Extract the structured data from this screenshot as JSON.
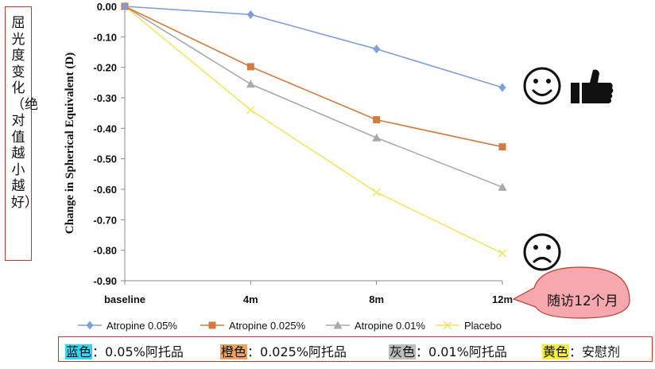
{
  "side_label": "屈光度变化（绝对值越小越好）",
  "callout": "随访12个月",
  "colors": {
    "blue": "#7f9fd6",
    "orange": "#d17b3f",
    "gray": "#a9a9a9",
    "yellow": "#f2e46a",
    "border": "#c0392b",
    "callout_fill": "#f7a8ae"
  },
  "icons": {
    "happy": "smiley-face-icon",
    "like": "thumbs-up-icon",
    "sad": "sad-face-icon"
  },
  "chart_data": {
    "type": "line",
    "categories": [
      "baseline",
      "4m",
      "8m",
      "12m"
    ],
    "ylabel": "Change in Spherical Equivalent (D)",
    "ylim": [
      -0.9,
      0.0
    ],
    "yticks": [
      "0.00",
      "-0.10",
      "-0.20",
      "-0.30",
      "-0.40",
      "-0.50",
      "-0.60",
      "-0.70",
      "-0.80",
      "-0.90"
    ],
    "grid": false,
    "legend_position": "bottom",
    "series": [
      {
        "name": "Atropine 0.05%",
        "values": [
          0.0,
          -0.027,
          -0.14,
          -0.266
        ],
        "color": "#7f9fd6",
        "marker": "diamond"
      },
      {
        "name": "Atropine 0.025%",
        "values": [
          0.0,
          -0.198,
          -0.372,
          -0.461
        ],
        "color": "#d17b3f",
        "marker": "square"
      },
      {
        "name": "Atropine 0.01%",
        "values": [
          0.0,
          -0.255,
          -0.431,
          -0.593
        ],
        "color": "#a9a9a9",
        "marker": "triangle"
      },
      {
        "name": "Placebo",
        "values": [
          0.0,
          -0.34,
          -0.61,
          -0.81
        ],
        "color": "#f2e46a",
        "marker": "x"
      }
    ]
  },
  "key": [
    {
      "color_word": "蓝色",
      "text": "：0.05%阿托品",
      "highlight": "#33d6f0"
    },
    {
      "color_word": "橙色",
      "text": "：0.025%阿托品",
      "highlight": "#e9a25f"
    },
    {
      "color_word": "灰色",
      "text": "：0.01%阿托品",
      "highlight": "#bdbdbd"
    },
    {
      "color_word": "黄色",
      "text": "：安慰剂",
      "highlight": "#f4ef3c"
    }
  ]
}
